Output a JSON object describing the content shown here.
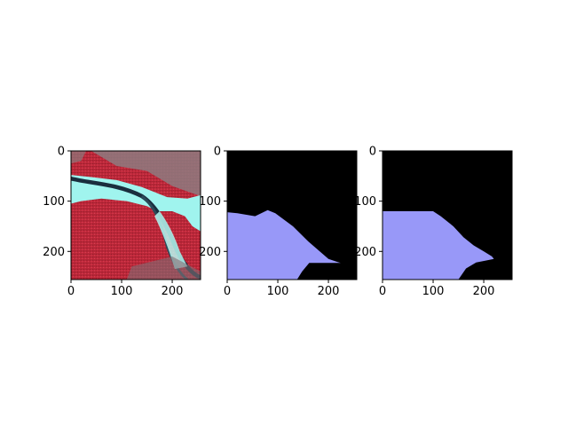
{
  "figure": {
    "background": "#ffffff"
  },
  "chart_data": [
    {
      "type": "image",
      "image_kind": "false-color satellite image (red vegetation, cyan river channel)",
      "xlim": [
        0,
        256
      ],
      "ylim": [
        256,
        0
      ],
      "x_ticks": [
        0,
        100,
        200
      ],
      "y_ticks": [
        0,
        100,
        200
      ],
      "x_tick_labels": [
        "0",
        "100",
        "200"
      ],
      "y_tick_labels": [
        "0",
        "100",
        "200"
      ],
      "colors": {
        "vegetation": "#c0283a",
        "river": "#a0f4ee",
        "channel": "#1a2e3e",
        "bare": "#9a8a8c"
      }
    },
    {
      "type": "image",
      "image_kind": "segmentation mask",
      "xlim": [
        0,
        256
      ],
      "ylim": [
        256,
        0
      ],
      "x_ticks": [
        0,
        100,
        200
      ],
      "y_ticks": [
        0,
        100,
        200
      ],
      "x_tick_labels": [
        "0",
        "100",
        "200"
      ],
      "y_tick_labels": [
        "0",
        "100",
        "200"
      ],
      "colors": {
        "background": "#000000",
        "region": "#9898f8"
      },
      "region_outline": [
        [
          0,
          122
        ],
        [
          20,
          124
        ],
        [
          55,
          130
        ],
        [
          80,
          118
        ],
        [
          95,
          124
        ],
        [
          130,
          150
        ],
        [
          160,
          180
        ],
        [
          200,
          215
        ],
        [
          224,
          223
        ],
        [
          185,
          223
        ],
        [
          162,
          223
        ],
        [
          148,
          240
        ],
        [
          138,
          256
        ],
        [
          0,
          256
        ]
      ]
    },
    {
      "type": "image",
      "image_kind": "segmentation mask",
      "xlim": [
        0,
        256
      ],
      "ylim": [
        256,
        0
      ],
      "x_ticks": [
        0,
        100,
        200
      ],
      "y_ticks": [
        0,
        100,
        200
      ],
      "x_tick_labels": [
        "0",
        "100",
        "200"
      ],
      "y_tick_labels": [
        "0",
        "100",
        "200"
      ],
      "colors": {
        "background": "#000000",
        "region": "#9898f8"
      },
      "region_outline": [
        [
          0,
          120
        ],
        [
          100,
          120
        ],
        [
          115,
          130
        ],
        [
          140,
          150
        ],
        [
          160,
          172
        ],
        [
          180,
          188
        ],
        [
          200,
          200
        ],
        [
          216,
          210
        ],
        [
          220,
          215
        ],
        [
          205,
          218
        ],
        [
          185,
          222
        ],
        [
          165,
          234
        ],
        [
          150,
          256
        ],
        [
          0,
          256
        ]
      ]
    }
  ]
}
